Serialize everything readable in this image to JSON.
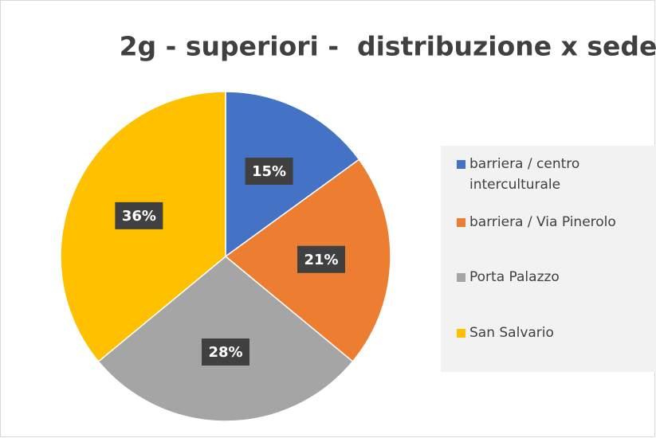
{
  "chart_data": {
    "type": "pie",
    "title": "2g - superiori -  distribuzione x sede",
    "categories": [
      "barriera / centro interculturale",
      "barriera / Via Pinerolo",
      "Porta Palazzo",
      "San Salvario"
    ],
    "values": [
      15,
      21,
      28,
      36
    ],
    "value_labels": [
      "15%",
      "21%",
      "28%",
      "36%"
    ],
    "colors": [
      "#4472c4",
      "#ed7d31",
      "#a5a5a5",
      "#ffc000"
    ],
    "legend": "right"
  }
}
